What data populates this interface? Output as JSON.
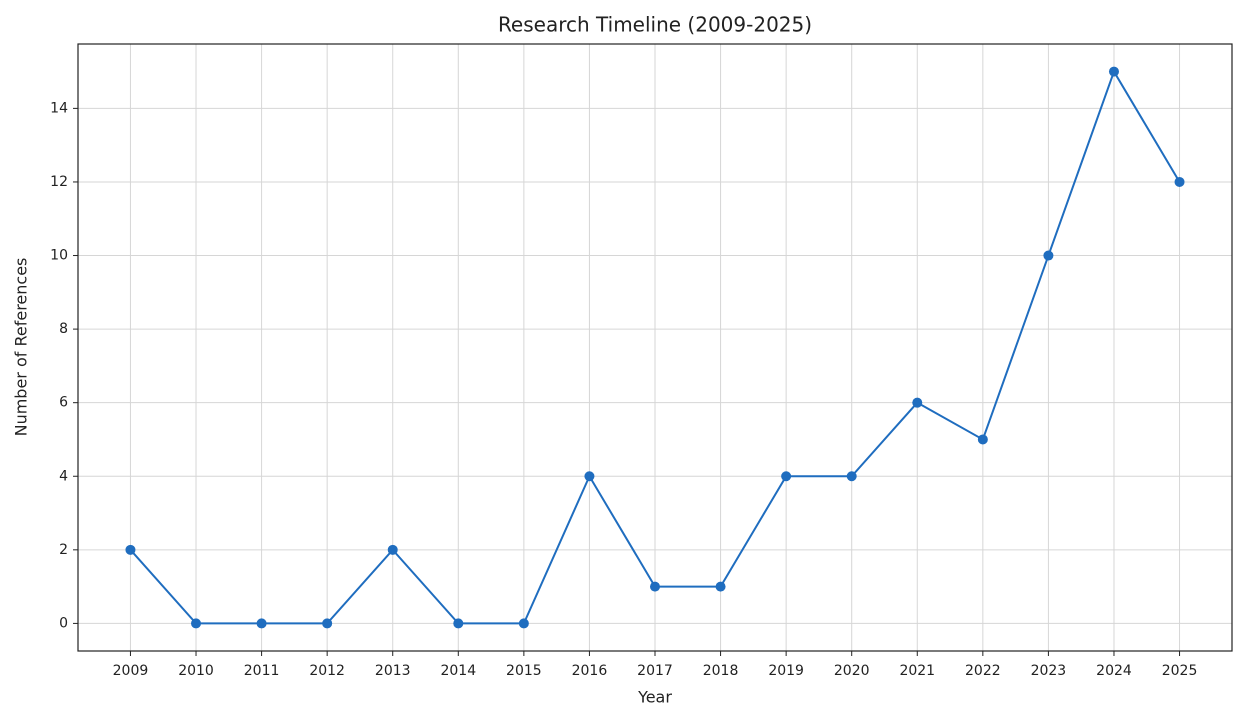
{
  "chart_data": {
    "type": "line",
    "title": "Research Timeline (2009-2025)",
    "x_label": "Year",
    "y_label": "Number of References",
    "x": [
      2009,
      2010,
      2011,
      2012,
      2013,
      2014,
      2015,
      2016,
      2017,
      2018,
      2019,
      2020,
      2021,
      2022,
      2023,
      2024,
      2025
    ],
    "values": [
      2,
      0,
      0,
      0,
      2,
      0,
      0,
      4,
      1,
      1,
      4,
      4,
      6,
      5,
      10,
      15,
      12
    ],
    "color": "#1f6dbf",
    "xlim": [
      2008.2,
      2025.8
    ],
    "xticks": [
      2009,
      2010,
      2011,
      2012,
      2013,
      2014,
      2015,
      2016,
      2017,
      2018,
      2019,
      2020,
      2021,
      2022,
      2023,
      2024,
      2025
    ],
    "ylim": [
      -0.75,
      15.75
    ],
    "yticks": [
      0,
      2,
      4,
      6,
      8,
      10,
      12,
      14
    ],
    "grid": true
  }
}
